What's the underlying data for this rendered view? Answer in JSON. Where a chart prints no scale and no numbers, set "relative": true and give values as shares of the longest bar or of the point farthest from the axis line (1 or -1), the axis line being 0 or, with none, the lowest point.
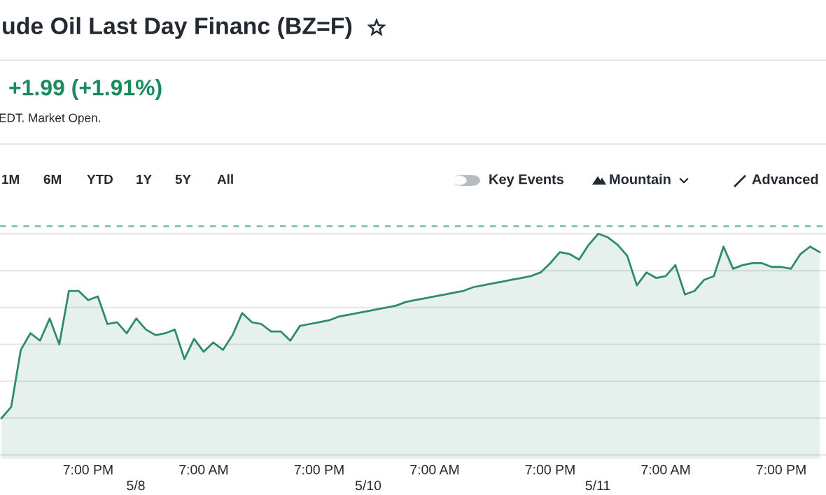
{
  "chart_data": {
    "type": "area",
    "title": "ude Oil Last Day Financ (BZ=F)",
    "subtitle": "+1.99 (+1.91%)",
    "annotations": [
      "EDT. Market Open.",
      "1M",
      "6M",
      "YTD",
      "1Y",
      "5Y",
      "All",
      "Key Events",
      "Mountain",
      "Advanced",
      "5/8",
      "5/10",
      "5/11"
    ],
    "relative": true,
    "categories": [
      null,
      null,
      null,
      null,
      null,
      null,
      null,
      null,
      null,
      "7:00 PM",
      null,
      null,
      null,
      null,
      null,
      null,
      null,
      null,
      null,
      null,
      null,
      "7:00 AM",
      null,
      null,
      null,
      null,
      null,
      null,
      null,
      null,
      null,
      null,
      null,
      "7:00 PM",
      null,
      null,
      null,
      null,
      null,
      null,
      null,
      null,
      null,
      null,
      null,
      "7:00 AM",
      null,
      null,
      null,
      null,
      null,
      null,
      null,
      null,
      null,
      null,
      null,
      "7:00 PM",
      null,
      null,
      null,
      null,
      null,
      null,
      null,
      null,
      null,
      null,
      null,
      "7:00 AM",
      null,
      null,
      null,
      null,
      null,
      null,
      null,
      null,
      null,
      null,
      null,
      "7:00 PM",
      null,
      null,
      null,
      null
    ],
    "series": [
      {
        "color": "#2e8b6e",
        "values": [
          0,
          0.06,
          0.37,
          0.46,
          0.42,
          0.54,
          0.4,
          0.69,
          0.69,
          0.64,
          0.66,
          0.51,
          0.52,
          0.46,
          0.54,
          0.48,
          0.45,
          0.46,
          0.48,
          0.32,
          0.43,
          0.36,
          0.41,
          0.37,
          0.45,
          0.57,
          0.52,
          0.51,
          0.47,
          0.47,
          0.42,
          0.5,
          0.51,
          0.52,
          0.53,
          0.55,
          0.56,
          0.57,
          0.58,
          0.59,
          0.6,
          0.61,
          0.63,
          0.64,
          0.65,
          0.66,
          0.67,
          0.68,
          0.69,
          0.71,
          0.72,
          0.73,
          0.74,
          0.75,
          0.76,
          0.77,
          0.79,
          0.84,
          0.9,
          0.89,
          0.86,
          0.94,
          1,
          0.98,
          0.94,
          0.88,
          0.72,
          0.79,
          0.76,
          0.77,
          0.83,
          0.67,
          0.69,
          0.75,
          0.77,
          0.93,
          0.81,
          0.83,
          0.84,
          0.84,
          0.82,
          0.82,
          0.81,
          0.89,
          0.93,
          0.9
        ]
      }
    ],
    "ref_lines": [
      {
        "axis": "y",
        "value": 1.04,
        "color": "#7cc4a8",
        "line_style": "dashed"
      }
    ],
    "grid": "y",
    "legend": false
  }
}
